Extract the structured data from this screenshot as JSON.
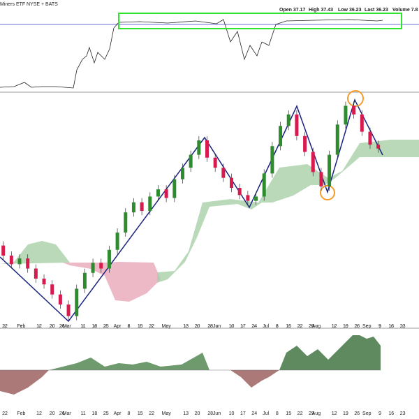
{
  "header": {
    "name": "Miners ETF",
    "exchange": "NYSE + BATS",
    "open": "Open 37.17",
    "high": "High 37.43",
    "low": "Low 36.23",
    "last": "Last 36.23",
    "volume": "Volume 7.8"
  },
  "chart_data": {
    "type": "candlestick",
    "color_up": "#2e8b2e",
    "color_down": "#d81b4f",
    "x": [
      15,
      20,
      25,
      30,
      35,
      40,
      45,
      50,
      55,
      60,
      65,
      70,
      75,
      80,
      85,
      90,
      95,
      100,
      105,
      110,
      115,
      120,
      125,
      130,
      135,
      140,
      145,
      150,
      155,
      160,
      165,
      170,
      175,
      180,
      185,
      190,
      195,
      200,
      205,
      210,
      215,
      220,
      225,
      230,
      235,
      240,
      245,
      250
    ],
    "values": [
      29.5,
      28.8,
      28.2,
      28.6,
      27.9,
      27.2,
      26.8,
      26.1,
      25.4,
      24.6,
      26.5,
      27.6,
      28.3,
      27.9,
      29.2,
      30.4,
      31.8,
      32.5,
      31.9,
      32.9,
      33.4,
      32.8,
      34.1,
      34.9,
      35.8,
      36.8,
      35.6,
      34.9,
      34.2,
      33.5,
      33.0,
      32.6,
      32.9,
      34.5,
      36.4,
      37.8,
      38.6,
      37.1,
      36.0,
      34.6,
      33.6,
      35.8,
      37.9,
      39.2,
      38.6,
      37.4,
      36.5,
      36.23
    ],
    "xlim": [
      18,
      275
    ],
    "ylim": [
      24,
      40
    ],
    "xticks": [
      {
        "value": 21,
        "label": "22"
      },
      {
        "value": 31,
        "label": "Feb"
      },
      {
        "value": 42,
        "label": "12"
      },
      {
        "value": 50,
        "label": "20"
      },
      {
        "value": 56,
        "label": "26"
      },
      {
        "value": 59,
        "label": "Mar"
      },
      {
        "value": 69,
        "label": "11"
      },
      {
        "value": 76,
        "label": "18"
      },
      {
        "value": 83,
        "label": "25"
      },
      {
        "value": 90,
        "label": "Apr"
      },
      {
        "value": 97,
        "label": "8"
      },
      {
        "value": 104,
        "label": "15"
      },
      {
        "value": 111,
        "label": "22"
      },
      {
        "value": 120,
        "label": "May"
      },
      {
        "value": 132,
        "label": "13"
      },
      {
        "value": 139,
        "label": "20"
      },
      {
        "value": 147,
        "label": "28"
      },
      {
        "value": 151,
        "label": "Jun"
      },
      {
        "value": 160,
        "label": "10"
      },
      {
        "value": 167,
        "label": "17"
      },
      {
        "value": 174,
        "label": "24"
      },
      {
        "value": 181,
        "label": "Jul"
      },
      {
        "value": 188,
        "label": "8"
      },
      {
        "value": 195,
        "label": "15"
      },
      {
        "value": 202,
        "label": "22"
      },
      {
        "value": 209,
        "label": "29"
      },
      {
        "value": 212,
        "label": "Aug"
      },
      {
        "value": 223,
        "label": "12"
      },
      {
        "value": 230,
        "label": "19"
      },
      {
        "value": 237,
        "label": "26"
      },
      {
        "value": 243,
        "label": "Sep"
      },
      {
        "value": 251,
        "label": "9"
      },
      {
        "value": 258,
        "label": "16"
      },
      {
        "value": 265,
        "label": "23"
      }
    ]
  }
}
